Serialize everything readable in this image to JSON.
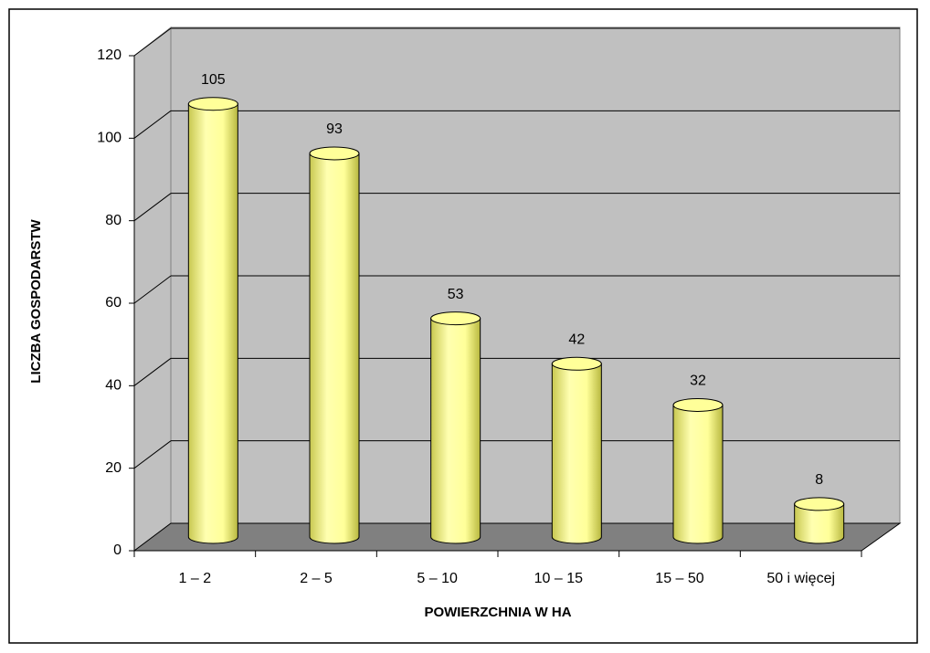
{
  "chart_data": {
    "type": "bar",
    "xlabel": "POWIERZCHNIA W HA",
    "ylabel": "LICZBA GOSPODARSTW",
    "categories": [
      "1 – 2",
      "2 – 5",
      "5 – 10",
      "10 – 15",
      "15 – 50",
      "50 i więcej"
    ],
    "values": [
      105,
      93,
      53,
      42,
      32,
      8
    ],
    "color": "#ffff99",
    "ylim": [
      0,
      120
    ],
    "yticks": [
      0,
      20,
      40,
      60,
      80,
      100,
      120
    ],
    "grid": true
  }
}
